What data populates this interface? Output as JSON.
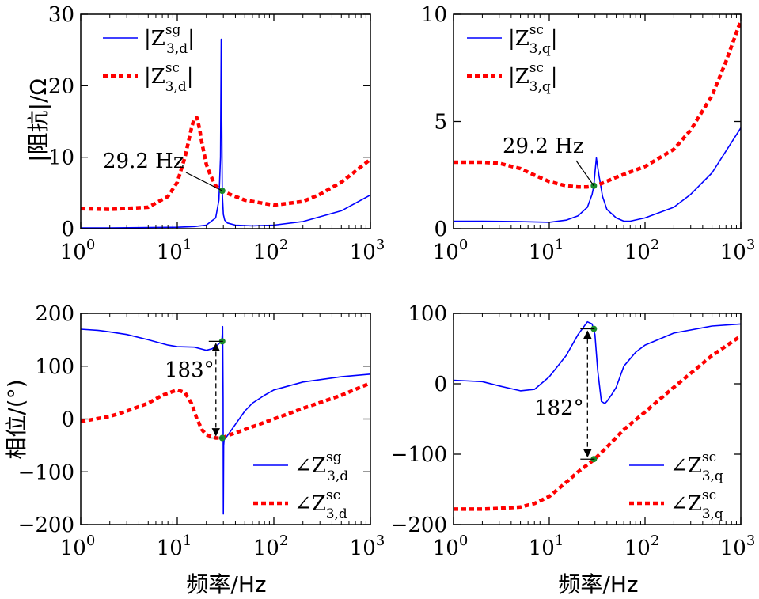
{
  "chart_data": [
    {
      "id": "mag_d",
      "type": "line",
      "xscale": "log",
      "xlim": [
        1,
        1000
      ],
      "ylim": [
        0,
        30
      ],
      "xticks": [
        1,
        10,
        100,
        1000
      ],
      "xtick_labels": [
        [
          "10",
          "0"
        ],
        [
          "10",
          "1"
        ],
        [
          "10",
          "2"
        ],
        [
          "10",
          "3"
        ]
      ],
      "yticks": [
        0,
        10,
        20,
        30
      ],
      "ytick_labels": [
        "0",
        "10",
        "20",
        "30"
      ],
      "ylabel": "|阻抗|/Ω",
      "xlabel": "",
      "series": [
        {
          "name": "|Z3,d sg|",
          "legend": {
            "pre": "|Z",
            "sup": "sg",
            "sub": "3,d",
            "post": "|"
          },
          "color": "#0000ff",
          "style": "solid",
          "x": [
            1,
            2,
            5,
            10,
            15,
            20,
            25,
            27,
            28,
            28.5,
            29,
            29.2,
            29.5,
            30,
            31,
            33,
            40,
            60,
            100,
            200,
            500,
            1000
          ],
          "y": [
            0.1,
            0.1,
            0.15,
            0.2,
            0.3,
            0.5,
            1.5,
            4,
            10,
            26.5,
            12,
            5.3,
            4,
            2,
            1.2,
            0.8,
            0.5,
            0.4,
            0.5,
            1.0,
            2.5,
            4.7
          ]
        },
        {
          "name": "|Z3,d sc|",
          "legend": {
            "pre": "|Z",
            "sup": "sc",
            "sub": "3,d",
            "post": "|"
          },
          "color": "#ff0000",
          "style": "dashed",
          "x": [
            1,
            2,
            5,
            8,
            10,
            12,
            14,
            15,
            16,
            17,
            18,
            20,
            22,
            25,
            29.2,
            35,
            50,
            100,
            200,
            300,
            500,
            1000
          ],
          "y": [
            2.8,
            2.7,
            3,
            4.5,
            6.5,
            10,
            14,
            15.5,
            15.5,
            14,
            12,
            9,
            7.5,
            6,
            5.3,
            4.8,
            4,
            3.3,
            3.8,
            4.8,
            6.5,
            9.7
          ]
        }
      ],
      "markers": [
        {
          "x": 29.2,
          "y": 5.3,
          "color": "#1a8a2a"
        }
      ],
      "annotation": {
        "text": "29.2 Hz",
        "x": 29.2,
        "y": 5.3
      }
    },
    {
      "id": "mag_q",
      "type": "line",
      "xscale": "log",
      "xlim": [
        1,
        1000
      ],
      "ylim": [
        0,
        10
      ],
      "xticks": [
        1,
        10,
        100,
        1000
      ],
      "xtick_labels": [
        [
          "10",
          "0"
        ],
        [
          "10",
          "1"
        ],
        [
          "10",
          "2"
        ],
        [
          "10",
          "3"
        ]
      ],
      "yticks": [
        0,
        5,
        10
      ],
      "ytick_labels": [
        "0",
        "5",
        "10"
      ],
      "ylabel": "",
      "xlabel": "",
      "series": [
        {
          "name": "|Z3,q sc| solid",
          "legend": {
            "pre": "|Z",
            "sup": "sc",
            "sub": "3,q",
            "post": "|"
          },
          "color": "#0000ff",
          "style": "solid",
          "x": [
            1,
            2,
            5,
            10,
            15,
            20,
            25,
            28,
            29.2,
            30,
            31,
            33,
            36,
            40,
            50,
            60,
            70,
            100,
            200,
            300,
            500,
            1000
          ],
          "y": [
            0.35,
            0.35,
            0.33,
            0.3,
            0.4,
            0.6,
            1.0,
            1.6,
            2.0,
            2.6,
            3.3,
            2.5,
            1.5,
            0.9,
            0.5,
            0.35,
            0.35,
            0.5,
            1.0,
            1.6,
            2.6,
            4.7
          ]
        },
        {
          "name": "|Z3,q sc| dashed",
          "legend": {
            "pre": "|Z",
            "sup": "sc",
            "sub": "3,q",
            "post": "|"
          },
          "color": "#ff0000",
          "style": "dashed",
          "x": [
            1,
            2,
            3,
            5,
            7,
            10,
            15,
            20,
            25,
            29.2,
            35,
            50,
            100,
            200,
            300,
            500,
            700,
            1000
          ],
          "y": [
            3.1,
            3.1,
            3.05,
            2.8,
            2.5,
            2.2,
            2.0,
            1.95,
            1.95,
            2.0,
            2.1,
            2.4,
            2.9,
            3.7,
            4.6,
            6.2,
            7.8,
            9.7
          ]
        }
      ],
      "markers": [
        {
          "x": 29.2,
          "y": 2.0,
          "color": "#1a8a2a"
        }
      ],
      "annotation": {
        "text": "29.2 Hz",
        "x": 29.2,
        "y": 2.0
      }
    },
    {
      "id": "ang_d",
      "type": "line",
      "xscale": "log",
      "xlim": [
        1,
        1000
      ],
      "ylim": [
        -200,
        200
      ],
      "xticks": [
        1,
        10,
        100,
        1000
      ],
      "xtick_labels": [
        [
          "10",
          "0"
        ],
        [
          "10",
          "1"
        ],
        [
          "10",
          "2"
        ],
        [
          "10",
          "3"
        ]
      ],
      "yticks": [
        -200,
        -100,
        0,
        100,
        200
      ],
      "ytick_labels": [
        "−200",
        "−100",
        "0",
        "100",
        "200"
      ],
      "ylabel": "相位/(°)",
      "xlabel": "频率/Hz",
      "series": [
        {
          "name": "∠Z3,d sg",
          "legend": {
            "pre": "∠Z",
            "sup": "sg",
            "sub": "3,d",
            "post": ""
          },
          "color": "#0000ff",
          "style": "solid",
          "x": [
            1,
            1.5,
            2,
            3,
            5,
            8,
            10,
            15,
            20,
            23,
            26,
            28,
            29,
            29.5,
            29.8,
            30,
            30.2,
            30.5,
            31,
            32,
            35,
            40,
            50,
            60,
            80,
            100,
            200,
            500,
            1000
          ],
          "y": [
            170,
            168,
            165,
            160,
            150,
            140,
            137,
            136,
            130,
            133,
            140,
            145,
            150,
            175,
            40,
            -180,
            -50,
            -40,
            -38,
            -35,
            -25,
            -10,
            15,
            30,
            45,
            55,
            70,
            80,
            85
          ]
        },
        {
          "name": "∠Z3,d sc",
          "legend": {
            "pre": "∠Z",
            "sup": "sc",
            "sub": "3,d",
            "post": ""
          },
          "color": "#ff0000",
          "style": "dashed",
          "x": [
            1,
            2,
            3,
            5,
            7,
            10,
            12,
            14,
            16,
            18,
            20,
            25,
            29.2,
            35,
            50,
            100,
            200,
            500,
            1000
          ],
          "y": [
            -5,
            5,
            15,
            30,
            45,
            55,
            50,
            30,
            0,
            -20,
            -30,
            -36,
            -36,
            -30,
            -20,
            0,
            20,
            45,
            68
          ]
        }
      ],
      "markers": [
        {
          "x": 29.2,
          "y": 147,
          "color": "#1a8a2a"
        },
        {
          "x": 29.2,
          "y": -36,
          "color": "#1a8a2a"
        }
      ],
      "annotation": {
        "text": "183°",
        "x": 29.2,
        "y_top": 147,
        "y_bottom": -36
      }
    },
    {
      "id": "ang_q",
      "type": "line",
      "xscale": "log",
      "xlim": [
        1,
        1000
      ],
      "ylim": [
        -200,
        100
      ],
      "xticks": [
        1,
        10,
        100,
        1000
      ],
      "xtick_labels": [
        [
          "10",
          "0"
        ],
        [
          "10",
          "1"
        ],
        [
          "10",
          "2"
        ],
        [
          "10",
          "3"
        ]
      ],
      "yticks": [
        -200,
        -100,
        0,
        100
      ],
      "ytick_labels": [
        "−200",
        "−100",
        "0",
        "100"
      ],
      "ylabel": "",
      "xlabel": "频率/Hz",
      "series": [
        {
          "name": "∠Z3,q sc solid",
          "legend": {
            "pre": "∠Z",
            "sup": "sc",
            "sub": "3,q",
            "post": ""
          },
          "color": "#0000ff",
          "style": "solid",
          "x": [
            1,
            2,
            3,
            5,
            7,
            10,
            15,
            20,
            25,
            28,
            30,
            32,
            35,
            38,
            40,
            45,
            50,
            60,
            80,
            100,
            200,
            500,
            1000
          ],
          "y": [
            5,
            3,
            -3,
            -10,
            -8,
            10,
            40,
            70,
            88,
            85,
            70,
            20,
            -25,
            -28,
            -25,
            -15,
            -5,
            25,
            45,
            55,
            72,
            82,
            85
          ]
        },
        {
          "name": "∠Z3,q sc dashed",
          "legend": {
            "pre": "∠Z",
            "sup": "sc",
            "sub": "3,q",
            "post": ""
          },
          "color": "#ff0000",
          "style": "dashed",
          "x": [
            1,
            2,
            3,
            5,
            7,
            10,
            15,
            20,
            29.2,
            40,
            60,
            100,
            200,
            500,
            1000
          ],
          "y": [
            -178,
            -178,
            -177,
            -175,
            -170,
            -160,
            -140,
            -125,
            -108,
            -90,
            -65,
            -40,
            -5,
            40,
            68
          ]
        }
      ],
      "markers": [
        {
          "x": 29.2,
          "y": 78,
          "color": "#1a8a2a"
        },
        {
          "x": 29.2,
          "y": -107,
          "color": "#1a8a2a"
        }
      ],
      "annotation": {
        "text": "182°",
        "x": 29.2,
        "y_top": 78,
        "y_bottom": -107
      }
    }
  ]
}
